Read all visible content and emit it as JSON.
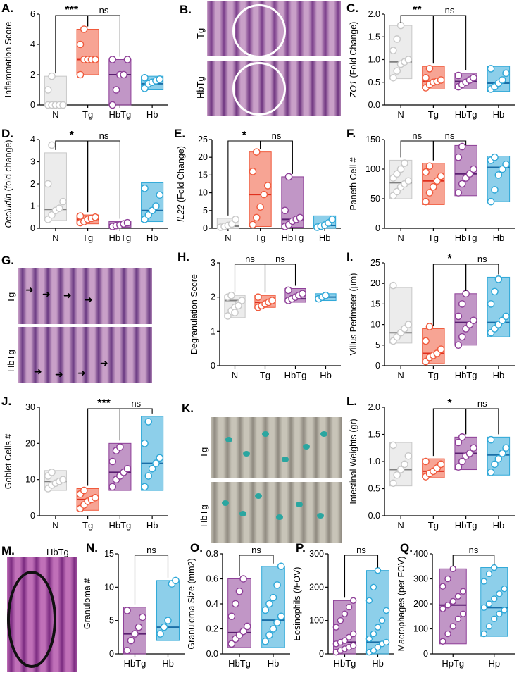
{
  "colors": {
    "N": "#c8c8c8",
    "Tg": "#f05a3c",
    "HbTg": "#8e3f98",
    "Hb": "#2fa8d8",
    "black": "#111111",
    "median_N": "#808080",
    "median_Tg": "#e0301e",
    "median_HbTg": "#5a1f70",
    "median_Hb": "#1a6fa8"
  },
  "chart_data": [
    {
      "panel": "A.",
      "type": "box",
      "ylabel": "Inflammation Score",
      "ylim": [
        0,
        6
      ],
      "yticks": [
        0,
        2,
        4,
        6
      ],
      "categories": [
        "N",
        "Tg",
        "HbTg",
        "Hb"
      ],
      "groups": [
        {
          "name": "N",
          "min": 0,
          "max": 1.9,
          "median": 0,
          "points": [
            0,
            0,
            0,
            0,
            0,
            1,
            1.9
          ]
        },
        {
          "name": "Tg",
          "min": 2,
          "max": 5,
          "median": 3,
          "points": [
            2,
            3,
            3,
            3,
            3,
            4,
            5
          ]
        },
        {
          "name": "HbTg",
          "min": 0,
          "max": 3,
          "median": 2,
          "points": [
            0,
            1,
            2,
            2,
            3,
            3
          ]
        },
        {
          "name": "Hb",
          "min": 1,
          "max": 1.9,
          "median": 1.4,
          "points": [
            1.1,
            1.4,
            1.5,
            1.6,
            1.7,
            1.8
          ]
        }
      ],
      "sig": [
        {
          "from": 0,
          "to": 1,
          "label": "***"
        },
        {
          "from": 1,
          "to": 2,
          "label": "ns"
        }
      ]
    },
    {
      "panel": "C.",
      "type": "box",
      "ylabel": "ZO1 (Fold Change)",
      "ylim": [
        0,
        2
      ],
      "yticks": [
        0.0,
        0.5,
        1.0,
        1.5,
        2.0
      ],
      "tick_decimals": 1,
      "categories": [
        "N",
        "Tg",
        "HbTg",
        "Hb"
      ],
      "groups": [
        {
          "name": "N",
          "min": 0.58,
          "max": 1.75,
          "median": 0.95,
          "points": [
            0.6,
            0.75,
            0.9,
            0.95,
            1.0,
            1.2,
            1.45,
            1.75
          ]
        },
        {
          "name": "Tg",
          "min": 0.35,
          "max": 0.85,
          "median": 0.52,
          "points": [
            0.38,
            0.45,
            0.5,
            0.52,
            0.55,
            0.6,
            0.8
          ]
        },
        {
          "name": "HbTg",
          "min": 0.35,
          "max": 0.7,
          "median": 0.52,
          "points": [
            0.4,
            0.45,
            0.5,
            0.55,
            0.6,
            0.65
          ]
        },
        {
          "name": "Hb",
          "min": 0.3,
          "max": 0.85,
          "median": 0.48,
          "points": [
            0.35,
            0.4,
            0.48,
            0.55,
            0.7,
            0.8
          ]
        }
      ],
      "sig": [
        {
          "from": 0,
          "to": 1,
          "label": "**"
        },
        {
          "from": 1,
          "to": 2,
          "label": "ns"
        }
      ]
    },
    {
      "panel": "D.",
      "type": "box",
      "ylabel": "Occludin (fold change)",
      "ylim": [
        0,
        4
      ],
      "yticks": [
        0,
        1,
        2,
        3,
        4
      ],
      "categories": [
        "N",
        "Tg",
        "HbTg",
        "Hb"
      ],
      "groups": [
        {
          "name": "N",
          "min": 0.35,
          "max": 3.4,
          "median": 0.85,
          "points": [
            0.4,
            0.6,
            0.8,
            0.9,
            1.2,
            2.0,
            3.75
          ]
        },
        {
          "name": "Tg",
          "min": 0.2,
          "max": 0.6,
          "median": 0.4,
          "points": [
            0.25,
            0.3,
            0.4,
            0.45,
            0.5,
            0.55
          ]
        },
        {
          "name": "HbTg",
          "min": 0.05,
          "max": 0.3,
          "median": 0.15,
          "points": [
            0.08,
            0.12,
            0.15,
            0.2,
            0.25
          ]
        },
        {
          "name": "Hb",
          "min": 0.3,
          "max": 2.05,
          "median": 0.8,
          "points": [
            0.4,
            0.6,
            0.8,
            1.0,
            1.5,
            1.8
          ]
        }
      ],
      "sig": [
        {
          "from": 0,
          "to": 1,
          "label": "*"
        },
        {
          "from": 1,
          "to": 2,
          "label": "ns"
        }
      ]
    },
    {
      "panel": "E.",
      "type": "box",
      "ylabel": "IL22 (Fold Change)",
      "ylim": [
        0,
        25
      ],
      "yticks": [
        0,
        5,
        10,
        15,
        20,
        25
      ],
      "categories": [
        "N",
        "Tg",
        "HbTg",
        "Hb"
      ],
      "groups": [
        {
          "name": "N",
          "min": 0,
          "max": 2.8,
          "median": 0.6,
          "points": [
            0.3,
            0.5,
            0.8,
            1.2,
            2.5
          ]
        },
        {
          "name": "Tg",
          "min": 0.5,
          "max": 21.5,
          "median": 9.5,
          "points": [
            1,
            3,
            6,
            9.5,
            12,
            16,
            21.5
          ]
        },
        {
          "name": "HbTg",
          "min": 0.3,
          "max": 14.5,
          "median": 2.5,
          "points": [
            0.5,
            1,
            2,
            2.5,
            3,
            5,
            14.5
          ]
        },
        {
          "name": "Hb",
          "min": 0,
          "max": 3.5,
          "median": 0.8,
          "points": [
            0.3,
            0.6,
            0.9,
            1.5,
            2.5
          ]
        }
      ],
      "sig": [
        {
          "from": 0,
          "to": 1,
          "label": "*"
        },
        {
          "from": 1,
          "to": 2,
          "label": "ns"
        }
      ]
    },
    {
      "panel": "F.",
      "type": "box",
      "ylabel": "Paneth Cell #",
      "ylim": [
        0,
        150
      ],
      "yticks": [
        0,
        50,
        100,
        150
      ],
      "categories": [
        "N",
        "Tg",
        "HbTg",
        "Hb"
      ],
      "groups": [
        {
          "name": "N",
          "min": 50,
          "max": 115,
          "median": 77,
          "points": [
            55,
            62,
            70,
            75,
            80,
            85,
            92,
            100,
            110
          ]
        },
        {
          "name": "Tg",
          "min": 40,
          "max": 110,
          "median": 80,
          "points": [
            45,
            60,
            70,
            80,
            88,
            95,
            105
          ]
        },
        {
          "name": "HbTg",
          "min": 55,
          "max": 140,
          "median": 92,
          "points": [
            60,
            75,
            85,
            92,
            100,
            120,
            138
          ]
        },
        {
          "name": "Hb",
          "min": 45,
          "max": 122,
          "median": 103,
          "points": [
            45,
            65,
            90,
            100,
            108,
            115,
            120
          ]
        }
      ],
      "sig": [
        {
          "from": 0,
          "to": 1,
          "label": "ns"
        },
        {
          "from": 1,
          "to": 2,
          "label": "ns"
        }
      ]
    },
    {
      "panel": "H.",
      "type": "box",
      "ylabel": "Degranulation Score",
      "ylim": [
        0,
        3
      ],
      "yticks": [
        0,
        1,
        2,
        3
      ],
      "categories": [
        "N",
        "Tg",
        "HbTg",
        "Hb"
      ],
      "groups": [
        {
          "name": "N",
          "min": 1.4,
          "max": 2.05,
          "median": 1.9,
          "points": [
            1.45,
            1.6,
            1.7,
            1.8,
            1.9,
            2.0,
            2.05,
            1.55,
            1.75
          ]
        },
        {
          "name": "Tg",
          "min": 1.7,
          "max": 2.05,
          "median": 1.85,
          "points": [
            1.7,
            1.75,
            1.8,
            1.85,
            1.9,
            2.0
          ]
        },
        {
          "name": "HbTg",
          "min": 1.85,
          "max": 2.25,
          "median": 1.95,
          "points": [
            1.9,
            1.95,
            2.0,
            2.05,
            2.1,
            2.2
          ]
        },
        {
          "name": "Hb",
          "min": 1.9,
          "max": 2.1,
          "median": 2.0,
          "points": [
            1.95,
            2.0,
            2.05
          ]
        }
      ],
      "sig": [
        {
          "from": 0,
          "to": 1,
          "label": "ns"
        },
        {
          "from": 1,
          "to": 2,
          "label": "ns"
        }
      ]
    },
    {
      "panel": "I.",
      "type": "box",
      "ylabel": "Villus Perimeter (μm)",
      "ylim": [
        0,
        25
      ],
      "yticks": [
        0,
        5,
        10,
        15,
        20,
        25
      ],
      "categories": [
        "N",
        "Tg",
        "HbTg",
        "Hb"
      ],
      "groups": [
        {
          "name": "N",
          "min": 5.5,
          "max": 19,
          "median": 8,
          "points": [
            6,
            7,
            8,
            9,
            10,
            19.5
          ]
        },
        {
          "name": "Tg",
          "min": 0.5,
          "max": 9,
          "median": 3,
          "points": [
            1,
            2,
            2.5,
            3,
            4,
            6,
            9.5
          ]
        },
        {
          "name": "HbTg",
          "min": 5,
          "max": 17.5,
          "median": 10.5,
          "points": [
            5,
            7,
            9,
            10,
            11,
            12,
            15,
            17.5
          ]
        },
        {
          "name": "Hb",
          "min": 7,
          "max": 21.5,
          "median": 10.5,
          "points": [
            8,
            9,
            10,
            11,
            12,
            15,
            18,
            21
          ]
        }
      ],
      "sig": [
        {
          "from": 1,
          "to": 2,
          "label": "*"
        },
        {
          "from": 2,
          "to": 3,
          "label": "ns"
        }
      ]
    },
    {
      "panel": "J.",
      "type": "box",
      "ylabel": "Goblet Cells #",
      "ylim": [
        0,
        30
      ],
      "yticks": [
        0,
        10,
        20,
        30
      ],
      "categories": [
        "N",
        "Tg",
        "HbTg",
        "Hb"
      ],
      "groups": [
        {
          "name": "N",
          "min": 7,
          "max": 12.5,
          "median": 9.5,
          "points": [
            7.5,
            8.5,
            9,
            9.5,
            10,
            11,
            12
          ]
        },
        {
          "name": "Tg",
          "min": 1.5,
          "max": 7.5,
          "median": 4.5,
          "points": [
            2,
            3,
            4,
            4.5,
            5,
            6,
            7
          ]
        },
        {
          "name": "HbTg",
          "min": 7,
          "max": 20,
          "median": 12,
          "points": [
            8,
            10,
            11,
            12,
            13,
            15,
            18,
            19
          ]
        },
        {
          "name": "Hb",
          "min": 7,
          "max": 27.5,
          "median": 14.5,
          "points": [
            8,
            11,
            13,
            14.5,
            16,
            20,
            26
          ]
        }
      ],
      "sig": [
        {
          "from": 1,
          "to": 2,
          "label": "***"
        },
        {
          "from": 2,
          "to": 3,
          "label": "ns"
        }
      ]
    },
    {
      "panel": "L.",
      "type": "box",
      "ylabel": "Intestinal Weights (gr)",
      "ylim": [
        0,
        2
      ],
      "yticks": [
        0.0,
        0.5,
        1.0,
        1.5,
        2.0
      ],
      "tick_decimals": 1,
      "categories": [
        "N",
        "Tg",
        "HbTg",
        "Hb"
      ],
      "groups": [
        {
          "name": "N",
          "min": 0.55,
          "max": 1.35,
          "median": 0.85,
          "points": [
            0.6,
            0.75,
            0.85,
            0.95,
            1.1,
            1.3
          ]
        },
        {
          "name": "Tg",
          "min": 0.7,
          "max": 1.05,
          "median": 0.82,
          "points": [
            0.72,
            0.78,
            0.82,
            0.88,
            0.95,
            1.0
          ]
        },
        {
          "name": "HbTg",
          "min": 0.85,
          "max": 1.45,
          "median": 1.15,
          "points": [
            0.9,
            1.0,
            1.1,
            1.15,
            1.25,
            1.35,
            1.45
          ]
        },
        {
          "name": "Hb",
          "min": 0.75,
          "max": 1.45,
          "median": 1.12,
          "points": [
            0.8,
            0.95,
            1.05,
            1.15,
            1.25,
            1.4
          ]
        }
      ],
      "sig": [
        {
          "from": 1,
          "to": 2,
          "label": "*"
        },
        {
          "from": 2,
          "to": 3,
          "label": "ns"
        }
      ]
    },
    {
      "panel": "N.",
      "type": "box",
      "ylabel": "Granuloma #",
      "ylim": [
        0,
        15
      ],
      "yticks": [
        0,
        5,
        10,
        15
      ],
      "categories": [
        "HbTg",
        "Hb"
      ],
      "groups": [
        {
          "name": "HbTg",
          "min": 0,
          "max": 7,
          "median": 3,
          "points": [
            0.5,
            2,
            3,
            4,
            5.5,
            6.5
          ]
        },
        {
          "name": "Hb",
          "min": 2,
          "max": 11,
          "median": 4,
          "points": [
            3,
            4,
            5,
            10.5,
            11
          ]
        }
      ],
      "sig": [
        {
          "from": 0,
          "to": 1,
          "label": "ns"
        }
      ]
    },
    {
      "panel": "O.",
      "type": "box",
      "ylabel": "Granuloma Size (mm2)",
      "ylim": [
        0,
        0.8
      ],
      "yticks": [
        0.0,
        0.2,
        0.4,
        0.6,
        0.8
      ],
      "tick_decimals": 1,
      "categories": [
        "HbTg",
        "Hb"
      ],
      "groups": [
        {
          "name": "HbTg",
          "min": 0.05,
          "max": 0.6,
          "median": 0.17,
          "points": [
            0.08,
            0.12,
            0.15,
            0.18,
            0.22,
            0.3,
            0.4,
            0.5,
            0.6
          ]
        },
        {
          "name": "Hb",
          "min": 0.05,
          "max": 0.7,
          "median": 0.27,
          "points": [
            0.1,
            0.15,
            0.2,
            0.25,
            0.3,
            0.35,
            0.4,
            0.45,
            0.55,
            0.7
          ]
        }
      ],
      "sig": [
        {
          "from": 0,
          "to": 1,
          "label": "ns"
        }
      ]
    },
    {
      "panel": "P.",
      "type": "box",
      "ylabel": "Eosinophils (/FOV)",
      "ylim": [
        0,
        300
      ],
      "yticks": [
        0,
        100,
        200,
        300
      ],
      "categories": [
        "HbTg",
        "Hb"
      ],
      "groups": [
        {
          "name": "HbTg",
          "min": 0,
          "max": 160,
          "median": 35,
          "points": [
            5,
            10,
            15,
            20,
            25,
            30,
            35,
            40,
            50,
            60,
            80,
            100,
            120,
            140,
            160
          ]
        },
        {
          "name": "Hb",
          "min": 0,
          "max": 250,
          "median": 35,
          "points": [
            5,
            10,
            20,
            30,
            35,
            45,
            60,
            80,
            100,
            130,
            160,
            200,
            250
          ]
        }
      ],
      "sig": [
        {
          "from": 0,
          "to": 1,
          "label": "ns"
        }
      ]
    },
    {
      "panel": "Q.",
      "type": "box",
      "ylabel": "Macrophages (per FOV)",
      "ylim": [
        0,
        400
      ],
      "yticks": [
        0,
        100,
        200,
        300,
        400
      ],
      "categories": [
        "HpTg",
        "Hp"
      ],
      "groups": [
        {
          "name": "HpTg",
          "min": 40,
          "max": 340,
          "median": 195,
          "points": [
            50,
            80,
            110,
            140,
            160,
            180,
            195,
            210,
            230,
            250,
            270,
            300,
            340
          ]
        },
        {
          "name": "Hp",
          "min": 70,
          "max": 345,
          "median": 185,
          "points": [
            80,
            110,
            140,
            160,
            175,
            185,
            200,
            220,
            240,
            260,
            290,
            320,
            345
          ]
        }
      ],
      "sig": [
        {
          "from": 0,
          "to": 1,
          "label": "ns"
        }
      ]
    }
  ],
  "image_panels": [
    {
      "panel": "B.",
      "labels": [
        "Tg",
        "HbTg"
      ]
    },
    {
      "panel": "G.",
      "labels": [
        "Tg",
        "HbTg"
      ]
    },
    {
      "panel": "K.",
      "labels": [
        "Tg",
        "HbTg"
      ]
    },
    {
      "panel": "M.",
      "labels": [
        "HbTg"
      ]
    }
  ]
}
